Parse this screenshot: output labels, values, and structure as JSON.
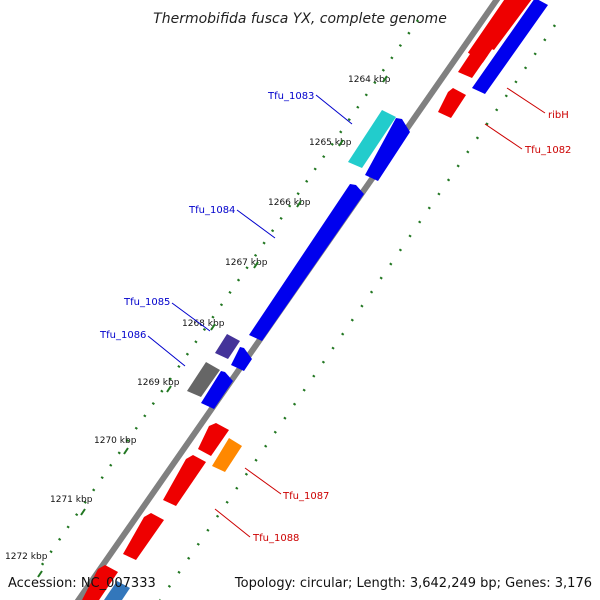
{
  "title": "Thermobifida fusca YX, complete genome",
  "accession": "Accession: NC_007333",
  "topology": "Topology: circular; Length: 3,642,249 bp; Genes: 3,176",
  "ticks": [
    "1264 kbp",
    "1265 kbp",
    "1266 kbp",
    "1267 kbp",
    "1268 kbp",
    "1269 kbp",
    "1270 kbp",
    "1271 kbp",
    "1272 kbp"
  ],
  "gene_labels": [
    {
      "id": "tfu1083",
      "text": "Tfu_1083",
      "color": "#0000cc"
    },
    {
      "id": "tfu1084",
      "text": "Tfu_1084",
      "color": "#0000cc"
    },
    {
      "id": "tfu1085",
      "text": "Tfu_1085",
      "color": "#0000cc"
    },
    {
      "id": "tfu1086",
      "text": "Tfu_1086",
      "color": "#0000cc"
    },
    {
      "id": "ribh",
      "text": "ribH",
      "color": "#cc0000"
    },
    {
      "id": "tfu1082",
      "text": "Tfu_1082",
      "color": "#cc0000"
    },
    {
      "id": "tfu1087",
      "text": "Tfu_1087",
      "color": "#cc0000"
    },
    {
      "id": "tfu1088",
      "text": "Tfu_1088",
      "color": "#cc0000"
    }
  ],
  "colors": {
    "forward": "#0000ee",
    "reverse": "#ee0000",
    "highlight_cyan": "#22cccc",
    "highlight_purple": "#443399",
    "highlight_gray": "#666666",
    "highlight_orange": "#ff8800",
    "backbone": "#808080",
    "dots": "#227722"
  }
}
